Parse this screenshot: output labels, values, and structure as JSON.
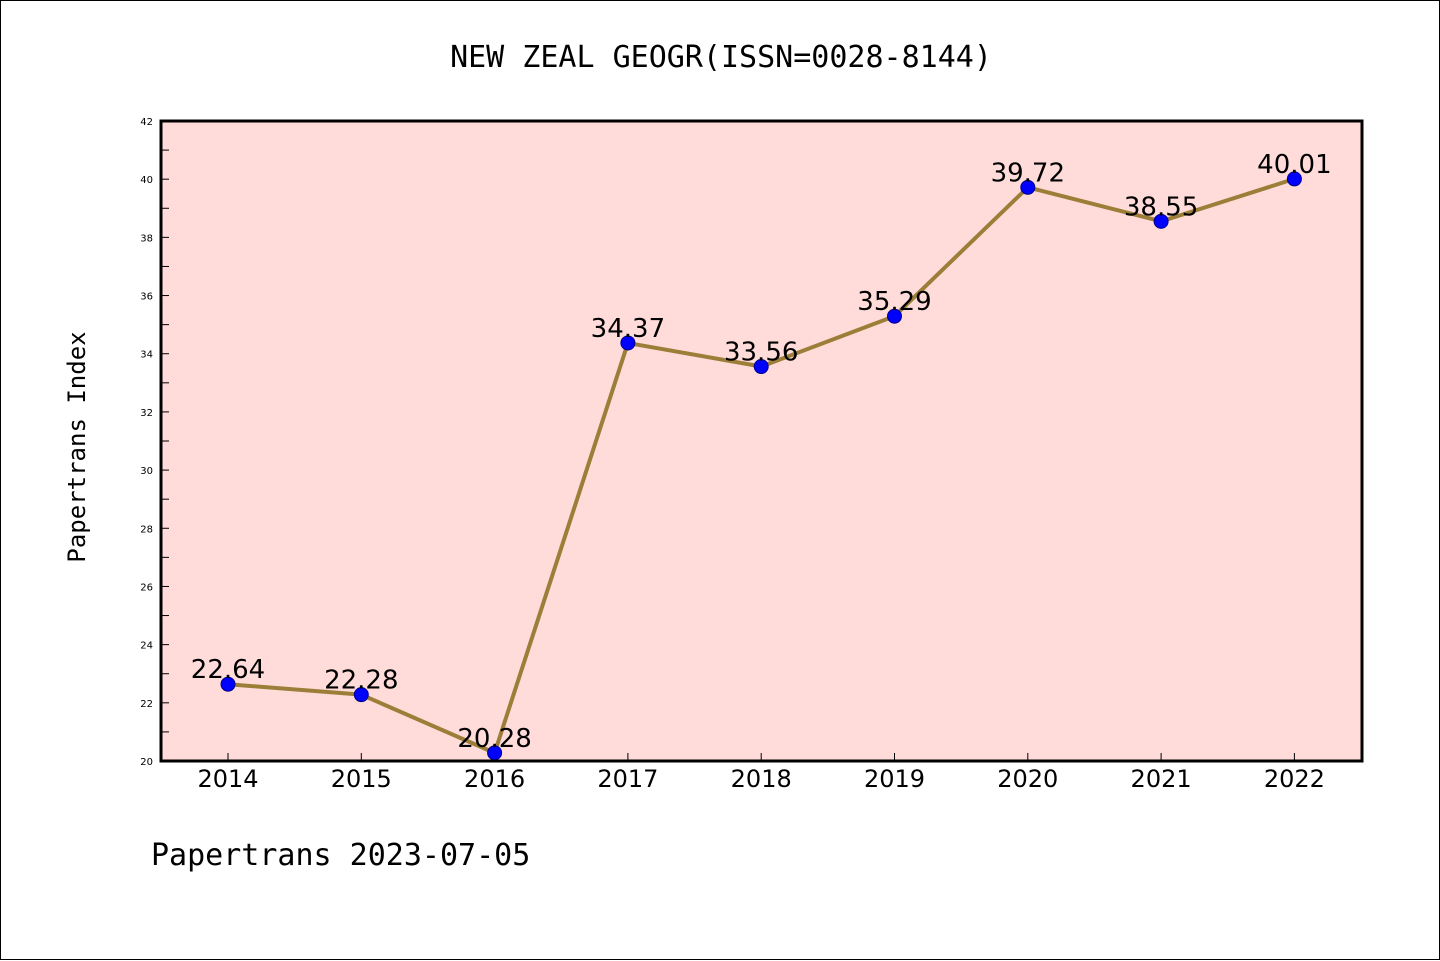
{
  "chart_data": {
    "type": "line",
    "title": "NEW ZEAL GEOGR(ISSN=0028-8144)",
    "ylabel": "Papertrans Index",
    "xlabel": "",
    "footer": "Papertrans 2023-07-05",
    "categories": [
      "2014",
      "2015",
      "2016",
      "2017",
      "2018",
      "2019",
      "2020",
      "2021",
      "2022"
    ],
    "series": [
      {
        "values": [
          22.64,
          22.28,
          20.28,
          34.37,
          33.56,
          35.29,
          39.72,
          38.55,
          40.01
        ],
        "labels": [
          "22.64",
          "22.28",
          "20.28",
          "34.37",
          "33.56",
          "35.29",
          "39.72",
          "38.55",
          "40.01"
        ]
      }
    ],
    "ylim": [
      20,
      42
    ],
    "yticks": [
      "20",
      "22",
      "24",
      "26",
      "28",
      "30",
      "32",
      "34",
      "36",
      "38",
      "40",
      "42"
    ],
    "grid": false,
    "colors": {
      "plot_background": "#FFDCDA",
      "line": "#9C7E38",
      "marker": "#0000FF",
      "marker_edge": "#00008B",
      "axis": "#000000"
    }
  }
}
